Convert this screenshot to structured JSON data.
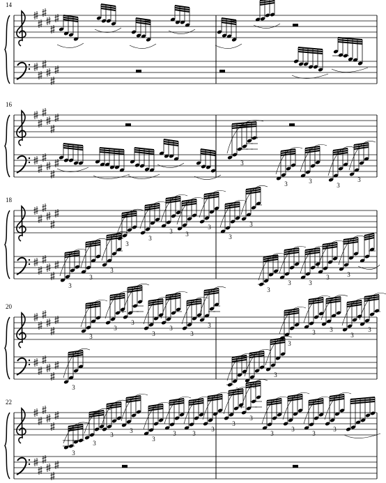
{
  "systems": [
    {
      "measure": "14",
      "tuplets": []
    },
    {
      "measure": "16",
      "tuplets": [
        "3",
        "3",
        "3",
        "3",
        "3"
      ]
    },
    {
      "measure": "18",
      "tuplets": [
        "3",
        "3",
        "3",
        "3",
        "3",
        "3",
        "3",
        "3",
        "3",
        "3",
        "3",
        "3",
        "3",
        "3",
        "3"
      ]
    },
    {
      "measure": "20",
      "tuplets": [
        "3",
        "3",
        "3",
        "3",
        "3",
        "3",
        "3",
        "3",
        "3",
        "3",
        "3",
        "3",
        "3",
        "3",
        "3",
        "3"
      ]
    },
    {
      "measure": "22",
      "tuplets": [
        "3",
        "3",
        "3",
        "3",
        "3",
        "3",
        "3",
        "3",
        "3",
        "3",
        "3",
        "3",
        "3",
        "3"
      ]
    }
  ]
}
